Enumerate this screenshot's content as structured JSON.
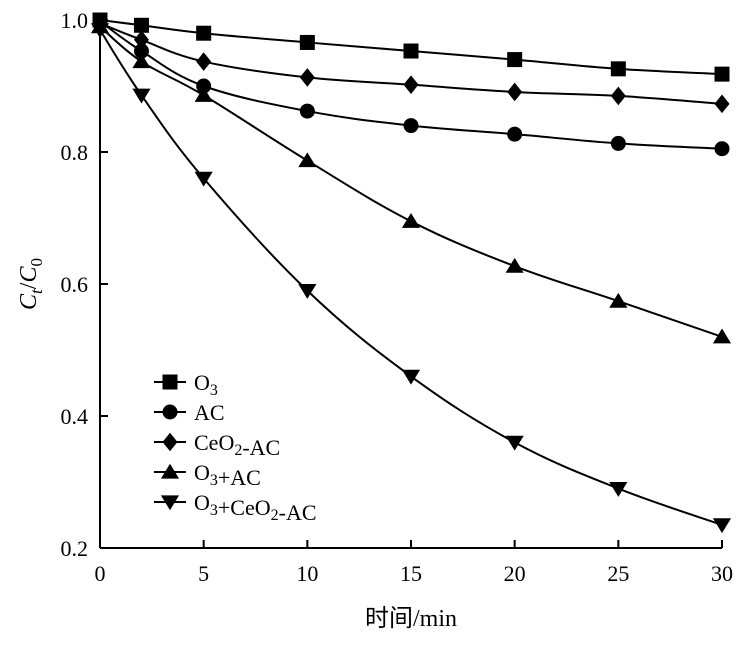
{
  "chart_data": {
    "type": "line",
    "xlabel": "时间/min",
    "ylabel": "Ct/C0",
    "xlim": [
      0,
      30
    ],
    "ylim": [
      0.2,
      1.0
    ],
    "xticks": [
      "0",
      "5",
      "10",
      "15",
      "20",
      "25",
      "30"
    ],
    "yticks": [
      "0.2",
      "0.4",
      "0.6",
      "0.8",
      "1.0"
    ],
    "grid": false,
    "legend_position": "lower-left",
    "line_color": "#000000",
    "series": [
      {
        "name": "O3",
        "marker": "square",
        "x": [
          0,
          2,
          5,
          10,
          15,
          20,
          25,
          30
        ],
        "y": [
          1.0,
          0.992,
          0.98,
          0.966,
          0.953,
          0.94,
          0.926,
          0.918
        ]
      },
      {
        "name": "AC",
        "marker": "circle",
        "x": [
          0,
          2,
          5,
          10,
          15,
          20,
          25,
          30
        ],
        "y": [
          0.998,
          0.953,
          0.9,
          0.862,
          0.84,
          0.827,
          0.813,
          0.805
        ]
      },
      {
        "name": "CeO2-AC",
        "marker": "diamond",
        "x": [
          0,
          2,
          5,
          10,
          15,
          20,
          25,
          30
        ],
        "y": [
          0.995,
          0.97,
          0.937,
          0.913,
          0.902,
          0.891,
          0.885,
          0.873
        ]
      },
      {
        "name": "O3+AC",
        "marker": "triangle-up",
        "x": [
          0,
          2,
          5,
          10,
          15,
          20,
          25,
          30
        ],
        "y": [
          0.99,
          0.937,
          0.886,
          0.787,
          0.695,
          0.627,
          0.574,
          0.52
        ]
      },
      {
        "name": "O3+CeO2-AC",
        "marker": "triangle-down",
        "x": [
          0,
          2,
          5,
          10,
          15,
          20,
          25,
          30
        ],
        "y": [
          0.985,
          0.886,
          0.76,
          0.59,
          0.46,
          0.36,
          0.29,
          0.235
        ]
      }
    ]
  }
}
